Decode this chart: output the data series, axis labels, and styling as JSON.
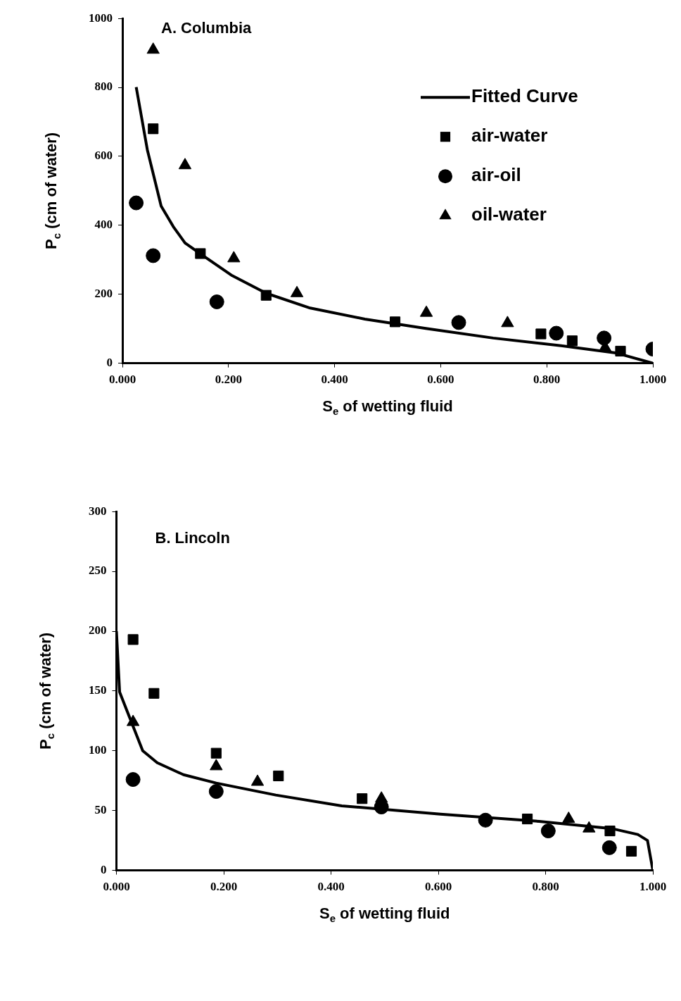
{
  "chart_data": [
    {
      "type": "scatter",
      "title": "A. Columbia",
      "xlabel": "S$_{e}$ of wetting fluid",
      "ylabel": "P$_{c}$ (cm of water)",
      "xlim": [
        0,
        1
      ],
      "xticks": [
        {
          "value": 0,
          "label": "0.000"
        },
        {
          "value": 0.2,
          "label": "0.200"
        },
        {
          "value": 0.4,
          "label": "0.400"
        },
        {
          "value": 0.6,
          "label": "0.600"
        },
        {
          "value": 0.8,
          "label": "0.800"
        },
        {
          "value": 1,
          "label": "1.000"
        }
      ],
      "ylim": [
        0,
        1000
      ],
      "yticks": [
        0,
        200,
        400,
        600,
        800,
        1000
      ],
      "grid": false,
      "legend": "top right",
      "series": [
        {
          "type": "line",
          "name": "Fitted Curve",
          "color": "#000000",
          "marker": "none",
          "line_style": "solid",
          "x": [
            0.026,
            0.047,
            0.073,
            0.096,
            0.118,
            0.15,
            0.207,
            0.271,
            0.354,
            0.457,
            0.572,
            0.699,
            0.827,
            0.93,
            1.0
          ],
          "values": [
            801,
            619,
            456,
            396,
            349,
            314,
            254,
            203,
            160,
            128,
            101,
            73,
            51,
            30,
            0
          ]
        },
        {
          "type": "scatter",
          "name": "air-water",
          "color": "#000000",
          "marker": "square",
          "x": [
            0.058,
            0.147,
            0.271,
            0.514,
            0.789,
            0.848,
            0.939
          ],
          "values": [
            680,
            318,
            197,
            120,
            85,
            65,
            35
          ]
        },
        {
          "type": "scatter",
          "name": "air-oil",
          "color": "#000000",
          "marker": "circle",
          "x": [
            0.026,
            0.058,
            0.178,
            0.634,
            0.818,
            0.908,
            1.0
          ],
          "values": [
            465,
            312,
            178,
            118,
            87,
            73,
            41
          ]
        },
        {
          "type": "scatter",
          "name": "oil-water",
          "color": "#000000",
          "marker": "triangle",
          "x": [
            0.058,
            0.118,
            0.21,
            0.329,
            0.573,
            0.726,
            0.91
          ],
          "values": [
            909,
            574,
            304,
            203,
            146,
            116,
            45
          ]
        }
      ]
    },
    {
      "type": "scatter",
      "title": "B. Lincoln",
      "xlabel": "S$_{e}$ of wetting fluid",
      "ylabel": "P$_{c}$ (cm of water)",
      "xlim": [
        0,
        1
      ],
      "xticks": [
        {
          "value": 0,
          "label": "0.000"
        },
        {
          "value": 0.2,
          "label": "0.200"
        },
        {
          "value": 0.4,
          "label": "0.400"
        },
        {
          "value": 0.6,
          "label": "0.600"
        },
        {
          "value": 0.8,
          "label": "0.800"
        },
        {
          "value": 1,
          "label": "1.000"
        }
      ],
      "ylim": [
        0,
        300
      ],
      "yticks": [
        0,
        50,
        100,
        150,
        200,
        250,
        300
      ],
      "grid": false,
      "legend": false,
      "series": [
        {
          "type": "line",
          "color": "#000000",
          "marker": "none",
          "line_style": "solid",
          "x": [
            0,
            0.006,
            0.049,
            0.076,
            0.125,
            0.186,
            0.297,
            0.42,
            0.604,
            0.788,
            0.923,
            0.972,
            0.99,
            1.0
          ],
          "values": [
            200,
            149,
            100,
            90,
            80,
            73,
            63,
            54,
            47,
            41,
            35,
            30,
            25,
            0
          ]
        },
        {
          "type": "scatter",
          "color": "#000000",
          "marker": "square",
          "x": [
            0.031,
            0.07,
            0.186,
            0.302,
            0.458,
            0.766,
            0.92,
            0.96
          ],
          "values": [
            193,
            148,
            98,
            79,
            60,
            43,
            33,
            16
          ]
        },
        {
          "type": "scatter",
          "color": "#000000",
          "marker": "circle",
          "x": [
            0.031,
            0.186,
            0.494,
            0.688,
            0.805,
            0.919
          ],
          "values": [
            76,
            66,
            53,
            42,
            33,
            19
          ]
        },
        {
          "type": "scatter",
          "color": "#000000",
          "marker": "triangle",
          "x": [
            0.031,
            0.186,
            0.263,
            0.494,
            0.843,
            0.881
          ],
          "values": [
            124,
            87,
            74,
            60,
            43,
            35
          ]
        }
      ]
    }
  ]
}
